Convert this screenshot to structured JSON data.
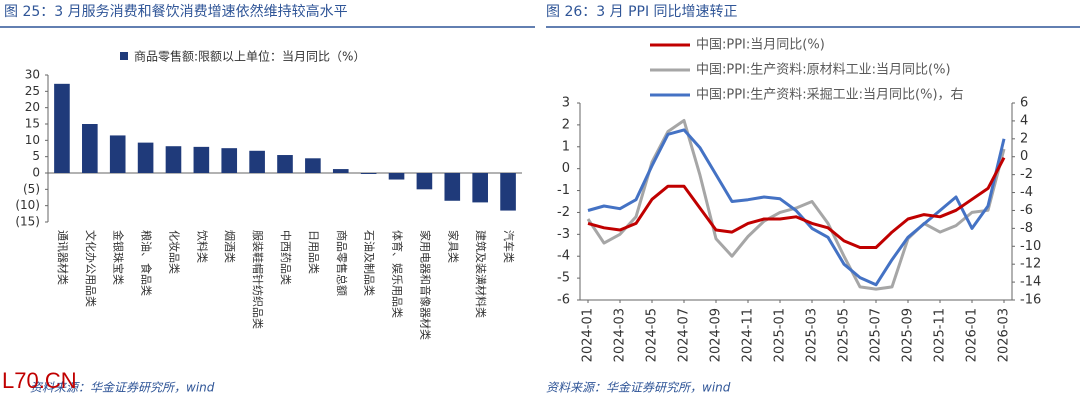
{
  "watermark": "L70.CN",
  "chart_data": [
    {
      "type": "bar",
      "title": "图 25：3 月服务消费和餐饮消费增速依然维持较高水平",
      "source": "资料来源：华金证券研究所，wind",
      "categories": [
        "通讯器材类",
        "文化办公用品类",
        "金银珠宝类",
        "粮油、食品类",
        "化妆品类",
        "饮料类",
        "烟酒类",
        "服装鞋帽针纺织品类",
        "中西药品类",
        "日用品类",
        "商品零售总额",
        "石油及制品类",
        "体育、娱乐用品类",
        "家用电器和音像器材类",
        "家具类",
        "建筑及装潢材料类",
        "汽车类"
      ],
      "series": [
        {
          "name": "商品零售额:限额以上单位：当月同比（%）",
          "color": "#1f3a7a",
          "values": [
            27.3,
            15,
            11.5,
            9.3,
            8.2,
            8,
            7.6,
            6.8,
            5.5,
            4.5,
            1.2,
            -0.3,
            -2,
            -5,
            -8.5,
            -9,
            -11.5
          ]
        }
      ],
      "ylim": [
        -15,
        30
      ],
      "yticks": [
        {
          "value": -15,
          "label": "(15)"
        },
        {
          "value": -10,
          "label": "(10)"
        },
        {
          "value": -5,
          "label": "(5)"
        },
        0,
        5,
        10,
        15,
        20,
        25,
        30
      ],
      "legend": "top"
    },
    {
      "type": "line",
      "title": "图 26：3 月 PPI 同比增速转正",
      "source": "资料来源：华金证券研究所，wind",
      "categories": [
        "2024-01",
        null,
        "2024-03",
        null,
        "2024-05",
        null,
        "2024-07",
        null,
        "2024-09",
        null,
        "2024-11",
        null,
        "2025-01",
        null,
        "2025-03",
        null,
        "2025-05",
        null,
        "2025-07",
        null,
        "2025-09",
        null,
        "2025-11",
        null,
        "2026-01",
        null,
        "2026-03"
      ],
      "series": [
        {
          "name": "中国:PPI:当月同比(%)",
          "color": "#c00000",
          "values": [
            -2.5,
            -2.7,
            -2.8,
            -2.5,
            -1.4,
            -0.8,
            -0.8,
            -1.8,
            -2.8,
            -2.9,
            -2.5,
            -2.3,
            -2.3,
            -2.2,
            -2.5,
            -2.7,
            -3.3,
            -3.6,
            -3.6,
            -2.9,
            -2.3,
            -2.1,
            -2.2,
            -1.9,
            -1.4,
            -0.9,
            0.5
          ]
        },
        {
          "name": "中国:PPI:生产资料:原材料工业:当月同比(%)",
          "color": "#a6a6a6",
          "values": [
            -2.3,
            -3.4,
            -3.0,
            -2.2,
            0.3,
            1.7,
            2.2,
            -0.3,
            -3.2,
            -4.0,
            -3.1,
            -2.4,
            -2.0,
            -1.8,
            -1.5,
            -2.5,
            -4.0,
            -5.4,
            -5.5,
            -5.4,
            -3.2,
            -2.5,
            -2.9,
            -2.6,
            -2.0,
            -1.9,
            0.9
          ]
        },
        {
          "name": "中国:PPI:生产资料:采掘工业:当月同比(%)，右",
          "color": "#4472c4",
          "axis": "y2",
          "values": [
            -6.0,
            -5.5,
            -5.8,
            -4.8,
            -1.0,
            2.5,
            3.0,
            1.0,
            -2.0,
            -5.0,
            -4.8,
            -4.5,
            -4.7,
            -6.0,
            -8.0,
            -9.0,
            -12.0,
            -13.5,
            -14.3,
            -11.5,
            -9.0,
            -7.5,
            -6.0,
            -4.5,
            -8.0,
            -5.5,
            2.0
          ]
        }
      ],
      "ylim": [
        -6,
        3
      ],
      "yticks": [
        -6,
        -5,
        -4,
        -3,
        -2,
        -1,
        0,
        1,
        2,
        3
      ],
      "y2lim": [
        -16,
        6
      ],
      "y2ticks": [
        -16,
        -14,
        -12,
        -10,
        -8,
        -6,
        -4,
        -2,
        0,
        2,
        4,
        6
      ],
      "legend": "top"
    }
  ]
}
